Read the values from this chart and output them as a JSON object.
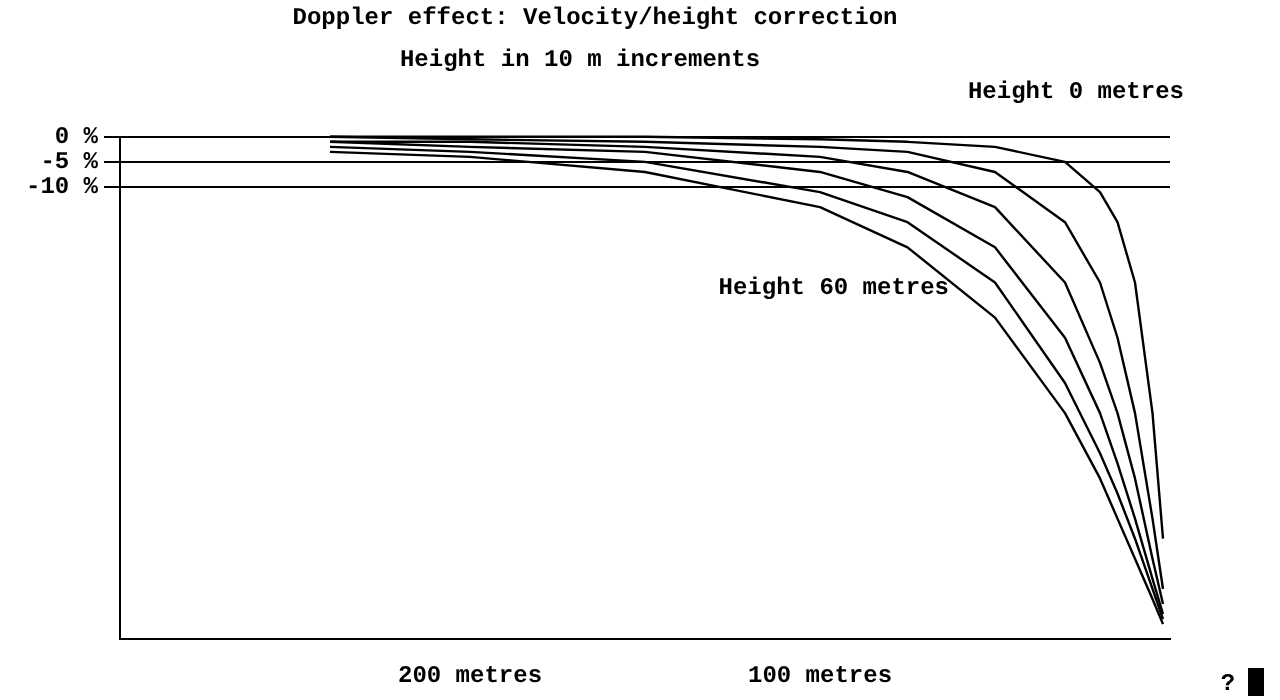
{
  "chart_data": {
    "type": "line",
    "title": "Doppler effect: Velocity/height correction",
    "annotations": [
      "Height in 10 m increments",
      "Height 0 metres",
      "?",
      {
        "text": "Height 60 metres",
        "x": 62,
        "y": -30
      }
    ],
    "xlim": [
      300,
      0
    ],
    "xticks": [
      {
        "value": 300,
        "label": null
      },
      {
        "value": 200,
        "label": "200 metres"
      },
      {
        "value": 100,
        "label": "100 metres"
      }
    ],
    "ylim": [
      -100,
      0
    ],
    "yticks": [
      {
        "value": 0,
        "label": "0 %"
      },
      {
        "value": -5,
        "label": "-5 %"
      },
      {
        "value": -10,
        "label": "-10 %"
      }
    ],
    "grid": "y",
    "legend": false,
    "marker": "none",
    "line_style": "solid",
    "series": [
      {
        "color": "#000000",
        "x": [
          240,
          200,
          150,
          100,
          75,
          50,
          30,
          20,
          15,
          10,
          5,
          2
        ],
        "values": [
          0,
          0,
          0,
          -0.5,
          -1,
          -2,
          -5,
          -11,
          -17,
          -29,
          -55,
          -80
        ]
      },
      {
        "color": "#000000",
        "x": [
          240,
          200,
          150,
          100,
          75,
          50,
          30,
          20,
          15,
          10,
          5,
          2
        ],
        "values": [
          0,
          -0.5,
          -1,
          -2,
          -3,
          -7,
          -17,
          -29,
          -40,
          -55,
          -76,
          -90
        ]
      },
      {
        "color": "#000000",
        "x": [
          240,
          200,
          150,
          100,
          75,
          50,
          30,
          20,
          15,
          10,
          5,
          2
        ],
        "values": [
          -1,
          -1,
          -2,
          -4,
          -7,
          -14,
          -29,
          -45,
          -55,
          -68,
          -84,
          -93
        ]
      },
      {
        "color": "#000000",
        "x": [
          240,
          200,
          150,
          100,
          75,
          50,
          30,
          20,
          15,
          10,
          5,
          2
        ],
        "values": [
          -1,
          -2,
          -3,
          -7,
          -12,
          -22,
          -40,
          -55,
          -65,
          -76,
          -88,
          -95
        ]
      },
      {
        "color": "#000000",
        "x": [
          240,
          200,
          150,
          100,
          75,
          50,
          30,
          20,
          15,
          10,
          5,
          2
        ],
        "values": [
          -2,
          -3,
          -5,
          -11,
          -17,
          -29,
          -49,
          -63,
          -71,
          -80,
          -90,
          -96
        ]
      },
      {
        "color": "#000000",
        "x": [
          240,
          200,
          150,
          100,
          75,
          50,
          30,
          20,
          15,
          10,
          5,
          2
        ],
        "values": [
          -3,
          -4,
          -7,
          -14,
          -22,
          -36,
          -55,
          -68,
          -76,
          -84,
          -92,
          -97
        ]
      }
    ]
  }
}
